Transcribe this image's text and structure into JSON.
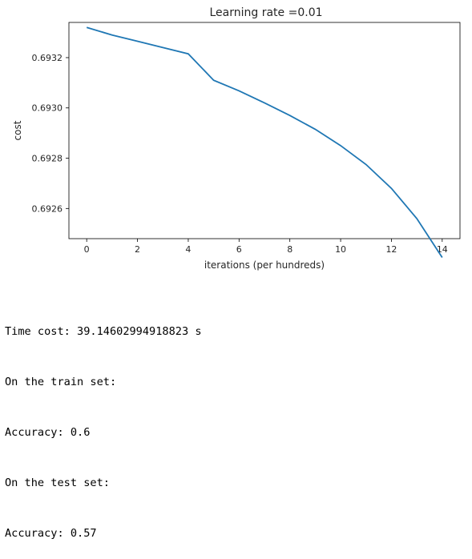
{
  "chart_data": {
    "type": "line",
    "title": "Learning rate =0.01",
    "xlabel": "iterations (per hundreds)",
    "ylabel": "cost",
    "xlim": [
      -0.7,
      14.7
    ],
    "ylim": [
      0.69248,
      0.69334
    ],
    "xticks": [
      0,
      2,
      4,
      6,
      8,
      10,
      12,
      14
    ],
    "yticks": [
      0.6926,
      0.6928,
      0.693,
      0.6932
    ],
    "xtick_labels": [
      "0",
      "2",
      "4",
      "6",
      "8",
      "10",
      "12",
      "14"
    ],
    "ytick_labels": [
      "0.6926",
      "0.6928",
      "0.6930",
      "0.6932"
    ],
    "grid": false,
    "line_color": "#1f77b4",
    "x": [
      0,
      1,
      2,
      3,
      4,
      5,
      6,
      7,
      8,
      9,
      10,
      11,
      12,
      13,
      14
    ],
    "series": [
      {
        "values": [
          0.69332,
          0.69329,
          0.693265,
          0.69324,
          0.693215,
          0.69311,
          0.693068,
          0.69302,
          0.69297,
          0.692915,
          0.69285,
          0.692775,
          0.69268,
          0.69256,
          0.692405
        ]
      }
    ]
  },
  "output": {
    "line1": "Time cost: 39.14602994918823 s",
    "line2": "On the train set:",
    "line3": "Accuracy: 0.6",
    "line4": "On the test set:",
    "line5": "Accuracy: 0.57"
  }
}
